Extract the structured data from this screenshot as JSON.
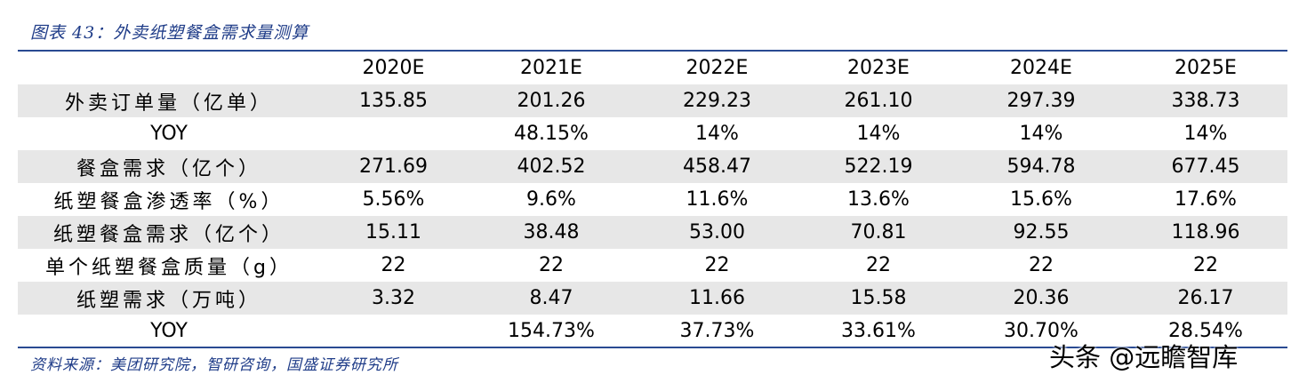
{
  "caption": "图表 43：外卖纸塑餐盒需求量测算",
  "columns": [
    "",
    "2020E",
    "2021E",
    "2022E",
    "2023E",
    "2024E",
    "2025E"
  ],
  "rows": [
    {
      "label": "外卖订单量（亿单）",
      "values": [
        "135.85",
        "201.26",
        "229.23",
        "261.10",
        "297.39",
        "338.73"
      ]
    },
    {
      "label": "YOY",
      "values": [
        "",
        "48.15%",
        "14%",
        "14%",
        "14%",
        "14%"
      ]
    },
    {
      "label": "餐盒需求（亿个）",
      "values": [
        "271.69",
        "402.52",
        "458.47",
        "522.19",
        "594.78",
        "677.45"
      ]
    },
    {
      "label": "纸塑餐盒渗透率（%）",
      "values": [
        "5.56%",
        "9.6%",
        "11.6%",
        "13.6%",
        "15.6%",
        "17.6%"
      ]
    },
    {
      "label": "纸塑餐盒需求（亿个）",
      "values": [
        "15.11",
        "38.48",
        "53.00",
        "70.81",
        "92.55",
        "118.96"
      ]
    },
    {
      "label": "单个纸塑餐盒质量（g）",
      "values": [
        "22",
        "22",
        "22",
        "22",
        "22",
        "22"
      ]
    },
    {
      "label": "纸塑需求（万吨）",
      "values": [
        "3.32",
        "8.47",
        "11.66",
        "15.58",
        "20.36",
        "26.17"
      ]
    },
    {
      "label": "YOY",
      "values": [
        "",
        "154.73%",
        "37.73%",
        "33.61%",
        "30.70%",
        "28.54%"
      ]
    }
  ],
  "source": "资料来源：美团研究院，智研咨询，国盛证券研究所",
  "watermark": "头条 @远瞻智库",
  "colors": {
    "accent": "#1f3c88",
    "row_shade": "#e7e7e7",
    "rule": "#2a4a92"
  }
}
